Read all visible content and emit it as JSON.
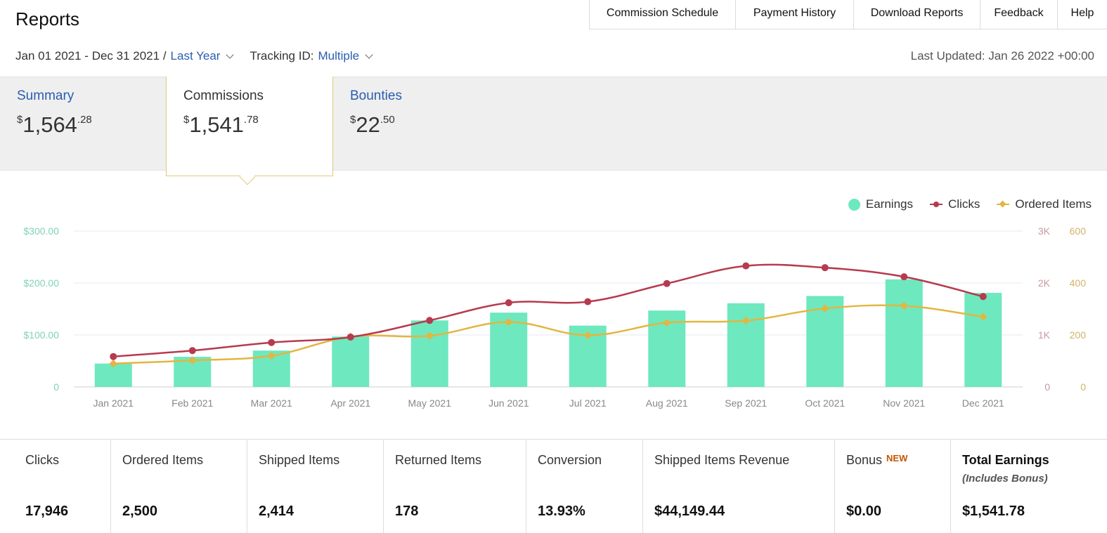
{
  "page": {
    "title": "Reports"
  },
  "top_nav": [
    {
      "label": "Commission Schedule"
    },
    {
      "label": "Payment History"
    },
    {
      "label": "Download Reports"
    },
    {
      "label": "Feedback"
    },
    {
      "label": "Help"
    }
  ],
  "filters": {
    "date_range": "Jan 01 2021 - Dec 31 2021 /",
    "period": "Last Year",
    "tracking_label": "Tracking ID:",
    "tracking_value": "Multiple"
  },
  "last_updated": "Last Updated: Jan 26 2022 +00:00",
  "tabs": {
    "summary": {
      "label": "Summary",
      "currency": "$",
      "whole": "1,564",
      "cents": ".28"
    },
    "commissions": {
      "label": "Commissions",
      "currency": "$",
      "whole": "1,541",
      "cents": ".78"
    },
    "bounties": {
      "label": "Bounties",
      "currency": "$",
      "whole": "22",
      "cents": ".50"
    }
  },
  "legend": {
    "earnings": "Earnings",
    "clicks": "Clicks",
    "ordered_items": "Ordered Items"
  },
  "colors": {
    "earnings": "#6ee8be",
    "clicks": "#b73a4e",
    "ordered_items": "#e2b641",
    "link": "#2a5db0",
    "accent_border": "#e4c77b",
    "new_badge": "#c45500"
  },
  "chart_data": {
    "type": "bar",
    "categories": [
      "Jan 2021",
      "Feb 2021",
      "Mar 2021",
      "Apr 2021",
      "May 2021",
      "Jun 2021",
      "Jul 2021",
      "Aug 2021",
      "Sep 2021",
      "Oct 2021",
      "Nov 2021",
      "Dec 2021"
    ],
    "series": [
      {
        "name": "Earnings",
        "type": "bar",
        "axis": "left",
        "values": [
          45,
          58,
          70,
          97,
          128,
          143,
          118,
          147,
          161,
          175,
          207,
          181
        ]
      },
      {
        "name": "Clicks",
        "type": "line",
        "axis": "right1",
        "values": [
          585,
          700,
          855,
          960,
          1280,
          1620,
          1640,
          1990,
          2330,
          2295,
          2120,
          1740
        ]
      },
      {
        "name": "Ordered Items",
        "type": "line",
        "axis": "right2",
        "values": [
          90,
          102,
          120,
          193,
          197,
          250,
          199,
          247,
          255,
          302,
          312,
          270
        ]
      }
    ],
    "y_left": {
      "ticks": [
        "0",
        "$100.00",
        "$200.00",
        "$300.00"
      ],
      "range": [
        0,
        300
      ]
    },
    "y_right1": {
      "ticks": [
        "0",
        "1K",
        "2K",
        "3K"
      ],
      "range": [
        0,
        3000
      ]
    },
    "y_right2": {
      "ticks": [
        "0",
        "200",
        "400",
        "600"
      ],
      "range": [
        0,
        600
      ]
    },
    "grid": true,
    "legend_position": "top-right"
  },
  "stats": [
    {
      "label": "Clicks",
      "value": "17,946"
    },
    {
      "label": "Ordered Items",
      "value": "2,500"
    },
    {
      "label": "Shipped Items",
      "value": "2,414"
    },
    {
      "label": "Returned Items",
      "value": "178"
    },
    {
      "label": "Conversion",
      "value": "13.93%"
    },
    {
      "label": "Shipped Items Revenue",
      "value": "$44,149.44"
    },
    {
      "label": "Bonus",
      "badge": "NEW",
      "value": "$0.00"
    },
    {
      "label": "Total Earnings",
      "note": "(Includes Bonus)",
      "value": "$1,541.78"
    }
  ]
}
